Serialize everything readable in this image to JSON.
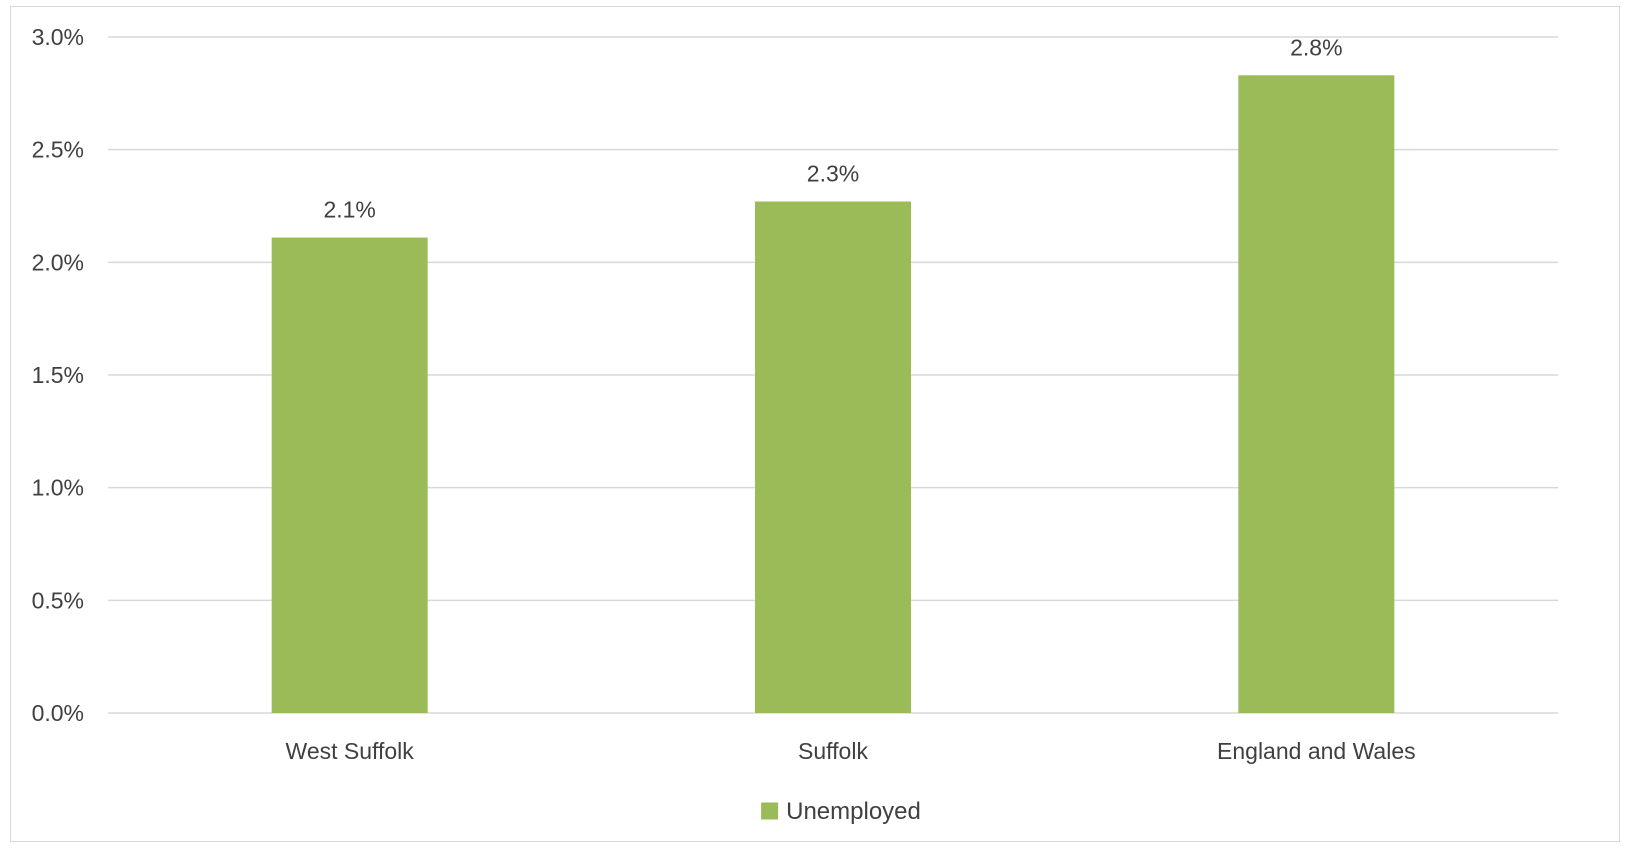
{
  "chart_data": {
    "type": "bar",
    "categories": [
      "West Suffolk",
      "Suffolk",
      "England and Wales"
    ],
    "series": [
      {
        "name": "Unemployed",
        "values": [
          2.11,
          2.27,
          2.83
        ],
        "data_labels": [
          "2.1%",
          "2.3%",
          "2.8%"
        ],
        "color": "#9bbb59"
      }
    ],
    "ylim": [
      0,
      3.0
    ],
    "yticks": [
      0,
      0.5,
      1.0,
      1.5,
      2.0,
      2.5,
      3.0
    ],
    "ytick_labels": [
      "0.0%",
      "0.5%",
      "1.0%",
      "1.5%",
      "2.0%",
      "2.5%",
      "3.0%"
    ],
    "grid": true,
    "legend_position": "bottom",
    "gridline_color": "#d9d9d9",
    "text_color": "#404040"
  }
}
